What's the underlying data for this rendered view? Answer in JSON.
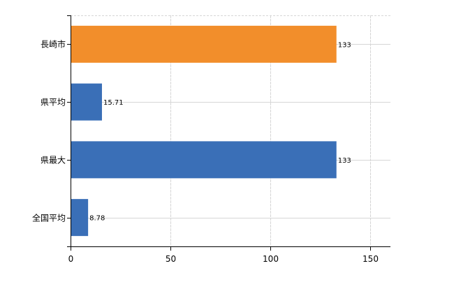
{
  "chart_data": {
    "type": "bar",
    "orientation": "horizontal",
    "categories": [
      "長崎市",
      "県平均",
      "県最大",
      "全国平均"
    ],
    "values": [
      133,
      15.71,
      133,
      8.78
    ],
    "value_labels": [
      "133",
      "15.71",
      "133",
      "8.78"
    ],
    "colors": [
      "#f28e2b",
      "#3a6fb7",
      "#3a6fb7",
      "#3a6fb7"
    ],
    "xlim": [
      0,
      160
    ],
    "xticks": [
      0,
      50,
      100,
      150
    ],
    "xtick_labels": [
      "0",
      "50",
      "100",
      "150"
    ],
    "grid": true,
    "title": "",
    "xlabel": "",
    "ylabel": ""
  }
}
